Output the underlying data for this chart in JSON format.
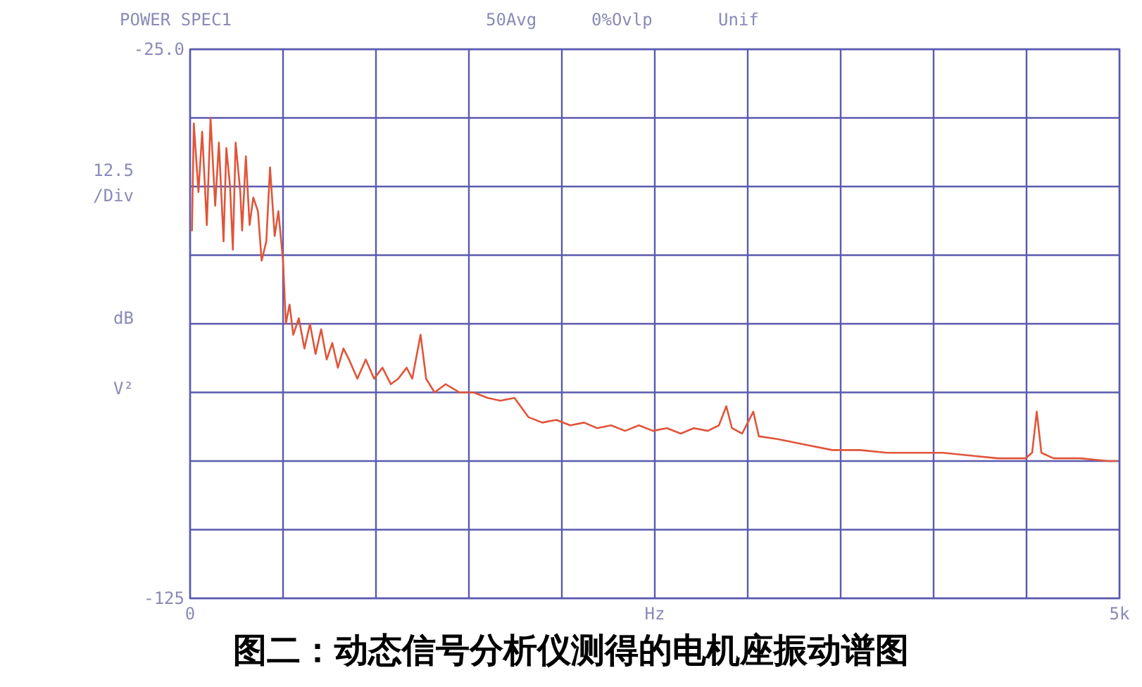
{
  "chart_data": {
    "type": "line",
    "title": "图二：动态信号分析仪测得的电机座振动谱图",
    "xlabel": "Hz",
    "ylabel": "dB V²",
    "annotations": [
      "POWER SPEC1",
      "50Avg",
      "0%Ovlp",
      "Unif",
      "12.5 /Div"
    ],
    "xlim": [
      0,
      5000
    ],
    "ylim": [
      -125,
      -25
    ],
    "xticks": [
      {
        "value": 0,
        "label": "0"
      },
      {
        "value": 500,
        "label": null
      },
      {
        "value": 1000,
        "label": null
      },
      {
        "value": 1500,
        "label": null
      },
      {
        "value": 2000,
        "label": null
      },
      {
        "value": 2500,
        "label": null
      },
      {
        "value": 3000,
        "label": null
      },
      {
        "value": 3500,
        "label": null
      },
      {
        "value": 4000,
        "label": null
      },
      {
        "value": 4500,
        "label": null
      },
      {
        "value": 5000,
        "label": "5k"
      }
    ],
    "yticks": [
      {
        "value": -125,
        "label": "-125"
      },
      {
        "value": -112.5,
        "label": null
      },
      {
        "value": -100,
        "label": null
      },
      {
        "value": -87.5,
        "label": null
      },
      {
        "value": -75,
        "label": null
      },
      {
        "value": -62.5,
        "label": null
      },
      {
        "value": -50,
        "label": null
      },
      {
        "value": -37.5,
        "label": null
      },
      {
        "value": -25,
        "label": "-25.0"
      }
    ],
    "grid": true,
    "series": [
      {
        "color": "#e0553a",
        "x": [
          10,
          20,
          45,
          65,
          90,
          110,
          135,
          155,
          180,
          195,
          215,
          230,
          245,
          270,
          280,
          300,
          320,
          340,
          365,
          385,
          410,
          430,
          455,
          475,
          500,
          515,
          535,
          555,
          585,
          615,
          645,
          675,
          705,
          735,
          765,
          795,
          825,
          855,
          900,
          945,
          990,
          1035,
          1080,
          1120,
          1165,
          1195,
          1240,
          1270,
          1315,
          1375,
          1450,
          1525,
          1600,
          1670,
          1745,
          1820,
          1895,
          1970,
          2045,
          2120,
          2190,
          2265,
          2340,
          2415,
          2490,
          2565,
          2640,
          2710,
          2785,
          2845,
          2885,
          2915,
          2970,
          3030,
          3060,
          3160,
          3305,
          3455,
          3605,
          3750,
          3900,
          4050,
          4200,
          4345,
          4495,
          4530,
          4555,
          4580,
          4645,
          4790,
          4940,
          4985
        ],
        "values": [
          -58,
          -38.5,
          -51,
          -40,
          -57,
          -37.5,
          -53.5,
          -42,
          -60,
          -43,
          -50,
          -61.5,
          -42,
          -51,
          -58,
          -44.5,
          -57,
          -52,
          -54.5,
          -63.5,
          -60,
          -46.5,
          -59,
          -54.5,
          -63.5,
          -75,
          -71.5,
          -77,
          -74,
          -79.5,
          -75,
          -80.5,
          -76,
          -81.5,
          -78.5,
          -83,
          -79.5,
          -81.5,
          -85,
          -81.5,
          -85,
          -83,
          -86,
          -85,
          -83,
          -85,
          -77,
          -85,
          -87.5,
          -86,
          -87.5,
          -87.5,
          -88.5,
          -89,
          -88.5,
          -92,
          -93,
          -92.5,
          -93.5,
          -93,
          -94,
          -93.5,
          -94.5,
          -93.5,
          -94.5,
          -94,
          -95,
          -94,
          -94.5,
          -93.5,
          -90,
          -94,
          -95,
          -91,
          -95.5,
          -96,
          -97,
          -98,
          -98,
          -98.5,
          -98.5,
          -98.5,
          -99,
          -99.5,
          -99.5,
          -98.5,
          -91,
          -98.5,
          -99.5,
          -99.5,
          -100,
          -100
        ]
      }
    ]
  }
}
